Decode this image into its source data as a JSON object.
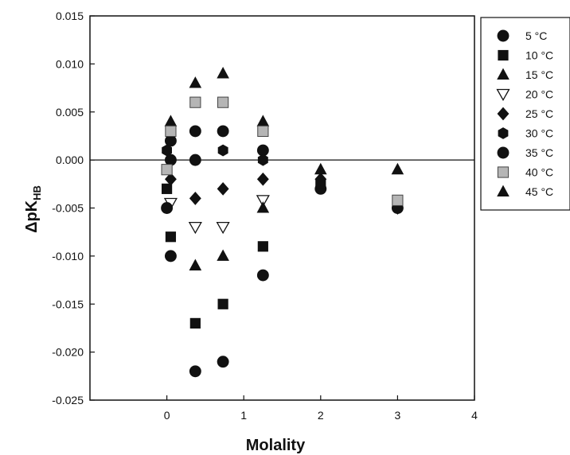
{
  "chart_data": {
    "type": "scatter",
    "xlabel": "Molality",
    "ylabel_main": "ΔpK",
    "ylabel_sub": "HB",
    "xlim": [
      -1,
      4
    ],
    "ylim": [
      -0.025,
      0.015
    ],
    "xticks": [
      0,
      1,
      2,
      3,
      4
    ],
    "xtick_labels": [
      "0",
      "1",
      "2",
      "3",
      "4"
    ],
    "yticks": [
      0.015,
      0.01,
      0.005,
      0.0,
      -0.005,
      -0.01,
      -0.015,
      -0.02,
      -0.025
    ],
    "ytick_labels": [
      "0.015",
      "0.010",
      "0.005",
      "0.000",
      "-0.005",
      "-0.010",
      "-0.015",
      "-0.020",
      "-0.025"
    ],
    "reference_line_y": 0,
    "grid": false,
    "legend_position": "right",
    "series": [
      {
        "name": "5 °C",
        "marker": "circle",
        "points": [
          [
            0.05,
            0.002
          ],
          [
            0.37,
            0.003
          ],
          [
            0.73,
            0.003
          ],
          [
            1.25,
            0.001
          ],
          [
            2,
            -0.003
          ],
          [
            3,
            -0.005
          ]
        ]
      },
      {
        "name": "10 °C",
        "marker": "square",
        "points": [
          [
            0.0,
            -0.003
          ],
          [
            0.05,
            -0.008
          ],
          [
            0.37,
            -0.017
          ],
          [
            0.73,
            -0.015
          ],
          [
            1.25,
            -0.009
          ],
          [
            2,
            -0.0025
          ]
        ]
      },
      {
        "name": "15 °C",
        "marker": "triangle",
        "points": [
          [
            0.05,
            0.004
          ],
          [
            0.37,
            0.008
          ],
          [
            0.73,
            0.009
          ],
          [
            1.25,
            0.004
          ]
        ]
      },
      {
        "name": "20 °C",
        "marker": "triangle-down",
        "points": [
          [
            0.05,
            -0.0045
          ],
          [
            0.37,
            -0.007
          ],
          [
            0.73,
            -0.007
          ],
          [
            1.25,
            -0.0042
          ]
        ]
      },
      {
        "name": "25 °C",
        "marker": "diamond",
        "points": [
          [
            0.05,
            -0.002
          ],
          [
            0.37,
            -0.004
          ],
          [
            0.73,
            -0.003
          ],
          [
            1.25,
            -0.002
          ],
          [
            2,
            -0.002
          ],
          [
            3,
            -0.005
          ]
        ]
      },
      {
        "name": "30 °C",
        "marker": "hexagon",
        "points": [
          [
            0.0,
            0.001
          ],
          [
            0.73,
            0.001
          ],
          [
            1.25,
            0.0
          ]
        ]
      },
      {
        "name": "35 °C",
        "marker": "circle",
        "points": [
          [
            0.0,
            -0.005
          ],
          [
            0.05,
            -0.01
          ],
          [
            0.37,
            -0.022
          ],
          [
            0.73,
            -0.021
          ],
          [
            1.25,
            -0.012
          ],
          [
            0.05,
            0.0
          ],
          [
            0.37,
            0.0
          ]
        ]
      },
      {
        "name": "40 °C",
        "marker": "square-gray",
        "points": [
          [
            0.05,
            0.003
          ],
          [
            0.0,
            -0.001
          ],
          [
            0.37,
            0.006
          ],
          [
            0.73,
            0.006
          ],
          [
            1.25,
            0.003
          ],
          [
            3,
            -0.0042
          ]
        ]
      },
      {
        "name": "45 °C",
        "marker": "triangle",
        "points": [
          [
            0.37,
            -0.011
          ],
          [
            0.73,
            -0.01
          ],
          [
            1.25,
            -0.005
          ],
          [
            2,
            -0.001
          ],
          [
            3,
            -0.001
          ]
        ]
      }
    ]
  }
}
